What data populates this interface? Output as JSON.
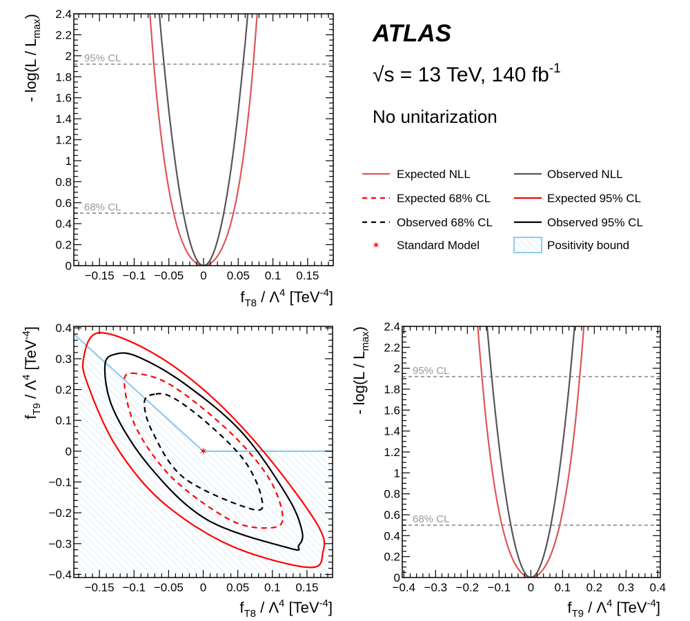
{
  "header": {
    "experiment": "ATLAS",
    "energy_prefix": "√s = 13 TeV, 140 fb",
    "energy_sup": "-1",
    "scheme": "No unitarization"
  },
  "legend": {
    "position": "top-right",
    "items": [
      {
        "label": "Expected NLL",
        "style": "solid",
        "color": "#dd5555"
      },
      {
        "label": "Observed NLL",
        "style": "solid",
        "color": "#555555"
      },
      {
        "label": "Expected 68% CL",
        "style": "dashed",
        "color": "#ff0000"
      },
      {
        "label": "Expected 95% CL",
        "style": "solid",
        "color": "#ff0000"
      },
      {
        "label": "Observed 68% CL",
        "style": "dashed",
        "color": "#000000"
      },
      {
        "label": "Observed 95% CL",
        "style": "solid",
        "color": "#000000"
      },
      {
        "label": "Standard Model",
        "style": "star",
        "color": "#ff0000"
      },
      {
        "label": "Positivity bound",
        "style": "hatch",
        "color": "#8ecbf0"
      }
    ]
  },
  "chart_data": [
    {
      "type": "line",
      "xlabel": [
        {
          "t": "f"
        },
        {
          "t": "T8",
          "s": "sub"
        },
        {
          "t": " / Λ"
        },
        {
          "t": "4",
          "s": "sup"
        },
        {
          "t": " [TeV"
        },
        {
          "t": "-4",
          "s": "sup"
        },
        {
          "t": "]"
        }
      ],
      "ylabel": [
        {
          "t": "- log(L / L"
        },
        {
          "t": "max",
          "s": "sub"
        },
        {
          "t": ")"
        }
      ],
      "xlim": [
        -0.187,
        0.187
      ],
      "ylim": [
        0,
        2.4
      ],
      "xticks": [
        -0.15,
        -0.1,
        -0.05,
        0,
        0.05,
        0.1,
        0.15
      ],
      "xminor": 0.01,
      "yticks": [
        0,
        0.2,
        0.4,
        0.6,
        0.8,
        1,
        1.2,
        1.4,
        1.6,
        1.8,
        2,
        2.2,
        2.4
      ],
      "yminor": 0.05,
      "reference_lines": [
        {
          "y": 1.92,
          "label": "95% CL"
        },
        {
          "y": 0.5,
          "label": "68% CL"
        }
      ],
      "series": [
        {
          "name": "Expected NLL",
          "color": "#dd5555",
          "x": [
            -0.08,
            -0.07,
            -0.06,
            -0.05,
            -0.04,
            -0.03,
            -0.02,
            -0.01,
            0,
            0.01,
            0.02,
            0.03,
            0.04,
            0.05,
            0.06,
            0.07,
            0.08
          ],
          "y": [
            2.636,
            1.79,
            1.17,
            0.727,
            0.42,
            0.217,
            0.09,
            0.022,
            0,
            0.022,
            0.09,
            0.217,
            0.42,
            0.727,
            1.17,
            1.79,
            2.636
          ]
        },
        {
          "name": "Observed NLL",
          "color": "#555555",
          "x": [
            -0.066,
            -0.06,
            -0.05,
            -0.04,
            -0.03,
            -0.02,
            -0.01,
            0,
            0.01,
            0.02,
            0.03,
            0.04,
            0.05,
            0.06,
            0.066
          ],
          "y": [
            2.57,
            2.124,
            1.475,
            0.944,
            0.531,
            0.236,
            0.059,
            0,
            0.059,
            0.236,
            0.531,
            0.944,
            1.475,
            2.124,
            2.57
          ]
        }
      ]
    },
    {
      "type": "scatter",
      "xlabel": [
        {
          "t": "f"
        },
        {
          "t": "T8",
          "s": "sub"
        },
        {
          "t": " / Λ"
        },
        {
          "t": "4",
          "s": "sup"
        },
        {
          "t": " [TeV"
        },
        {
          "t": "-4",
          "s": "sup"
        },
        {
          "t": "]"
        }
      ],
      "ylabel": [
        {
          "t": "f"
        },
        {
          "t": "T9",
          "s": "sub"
        },
        {
          "t": " / Λ"
        },
        {
          "t": "4",
          "s": "sup"
        },
        {
          "t": " [TeV"
        },
        {
          "t": "-4",
          "s": "sup"
        },
        {
          "t": "]"
        }
      ],
      "xlim": [
        -0.187,
        0.187
      ],
      "ylim": [
        -0.41,
        0.405
      ],
      "xticks": [
        -0.15,
        -0.1,
        -0.05,
        0,
        0.05,
        0.1,
        0.15
      ],
      "xminor": 0.01,
      "yticks": [
        -0.4,
        -0.3,
        -0.2,
        -0.1,
        0,
        0.1,
        0.2,
        0.3,
        0.4
      ],
      "yminor": 0.02,
      "standard_model": {
        "x": 0,
        "y": 0
      },
      "positivity_bound": {
        "x": [
          -0.187,
          0,
          0.187
        ],
        "y": [
          0.38,
          0,
          0
        ]
      },
      "contours": [
        {
          "name": "Expected 95% CL",
          "color": "#ff0000",
          "dashed": false,
          "x": [
            -0.151,
            -0.173,
            -0.166,
            -0.126,
            -0.06,
            0.039,
            0.152,
            0.173,
            0.165,
            0.089,
            0.006,
            -0.077
          ],
          "y": [
            0.384,
            0.301,
            0.211,
            0.016,
            -0.163,
            -0.306,
            -0.377,
            -0.328,
            -0.238,
            -0.006,
            0.189,
            0.324
          ]
        },
        {
          "name": "Observed 95% CL",
          "color": "#000000",
          "dashed": false,
          "x": [
            -0.125,
            -0.142,
            -0.13,
            -0.077,
            0.006,
            0.125,
            0.138,
            0.143,
            0.122,
            0.056,
            -0.027,
            -0.093
          ],
          "y": [
            0.316,
            0.279,
            0.136,
            -0.051,
            -0.223,
            -0.315,
            -0.306,
            -0.261,
            -0.148,
            0.061,
            0.219,
            0.305
          ]
        },
        {
          "name": "Expected 68% CL",
          "color": "#ff0000",
          "dashed": true,
          "x": [
            -0.097,
            -0.114,
            -0.097,
            -0.044,
            0.039,
            0.095,
            0.115,
            0.095,
            0.039,
            -0.044
          ],
          "y": [
            0.252,
            0.226,
            0.076,
            -0.088,
            -0.223,
            -0.249,
            -0.216,
            -0.088,
            0.061,
            0.211
          ]
        },
        {
          "name": "Observed 68% CL",
          "color": "#000000",
          "dashed": true,
          "x": [
            -0.07,
            -0.085,
            -0.073,
            -0.027,
            0.072,
            0.084,
            0.059,
            0.006,
            -0.044
          ],
          "y": [
            0.185,
            0.159,
            0.061,
            -0.088,
            -0.189,
            -0.148,
            -0.029,
            0.091,
            0.174
          ]
        }
      ]
    },
    {
      "type": "line",
      "xlabel": [
        {
          "t": "f"
        },
        {
          "t": "T9",
          "s": "sub"
        },
        {
          "t": " / Λ"
        },
        {
          "t": "4",
          "s": "sup"
        },
        {
          "t": " [TeV"
        },
        {
          "t": "-4",
          "s": "sup"
        },
        {
          "t": "]"
        }
      ],
      "ylabel": [
        {
          "t": "- log(L / L"
        },
        {
          "t": "max",
          "s": "sub"
        },
        {
          "t": ")"
        }
      ],
      "xlim": [
        -0.405,
        0.408
      ],
      "ylim": [
        0,
        2.4
      ],
      "xticks": [
        -0.4,
        -0.3,
        -0.2,
        -0.1,
        0,
        0.1,
        0.2,
        0.3,
        0.4
      ],
      "xminor": 0.02,
      "yticks": [
        0,
        0.2,
        0.4,
        0.6,
        0.8,
        1,
        1.2,
        1.4,
        1.6,
        1.8,
        2,
        2.2,
        2.4
      ],
      "yminor": 0.05,
      "reference_lines": [
        {
          "y": 1.92,
          "label": "95% CL"
        },
        {
          "y": 0.5,
          "label": "68% CL"
        }
      ],
      "series": [
        {
          "name": "Expected NLL",
          "color": "#dd5555",
          "x": [
            -0.17,
            -0.16,
            -0.14,
            -0.12,
            -0.1,
            -0.08,
            -0.06,
            -0.04,
            -0.02,
            0,
            0.02,
            0.04,
            0.06,
            0.08,
            0.1,
            0.12,
            0.14,
            0.16,
            0.17
          ],
          "y": [
            2.525,
            2.126,
            1.474,
            0.985,
            0.627,
            0.371,
            0.195,
            0.083,
            0.02,
            0,
            0.02,
            0.083,
            0.195,
            0.371,
            0.627,
            0.985,
            1.474,
            2.126,
            2.525
          ]
        },
        {
          "name": "Observed NLL",
          "color": "#555555",
          "x": [
            -0.14,
            -0.12,
            -0.1,
            -0.08,
            -0.06,
            -0.04,
            -0.02,
            0,
            0.02,
            0.04,
            0.06,
            0.08,
            0.1,
            0.12,
            0.14
          ],
          "y": [
            2.47,
            1.814,
            1.26,
            0.806,
            0.454,
            0.202,
            0.05,
            0,
            0.05,
            0.202,
            0.454,
            0.806,
            1.26,
            1.814,
            2.47
          ]
        }
      ]
    }
  ]
}
